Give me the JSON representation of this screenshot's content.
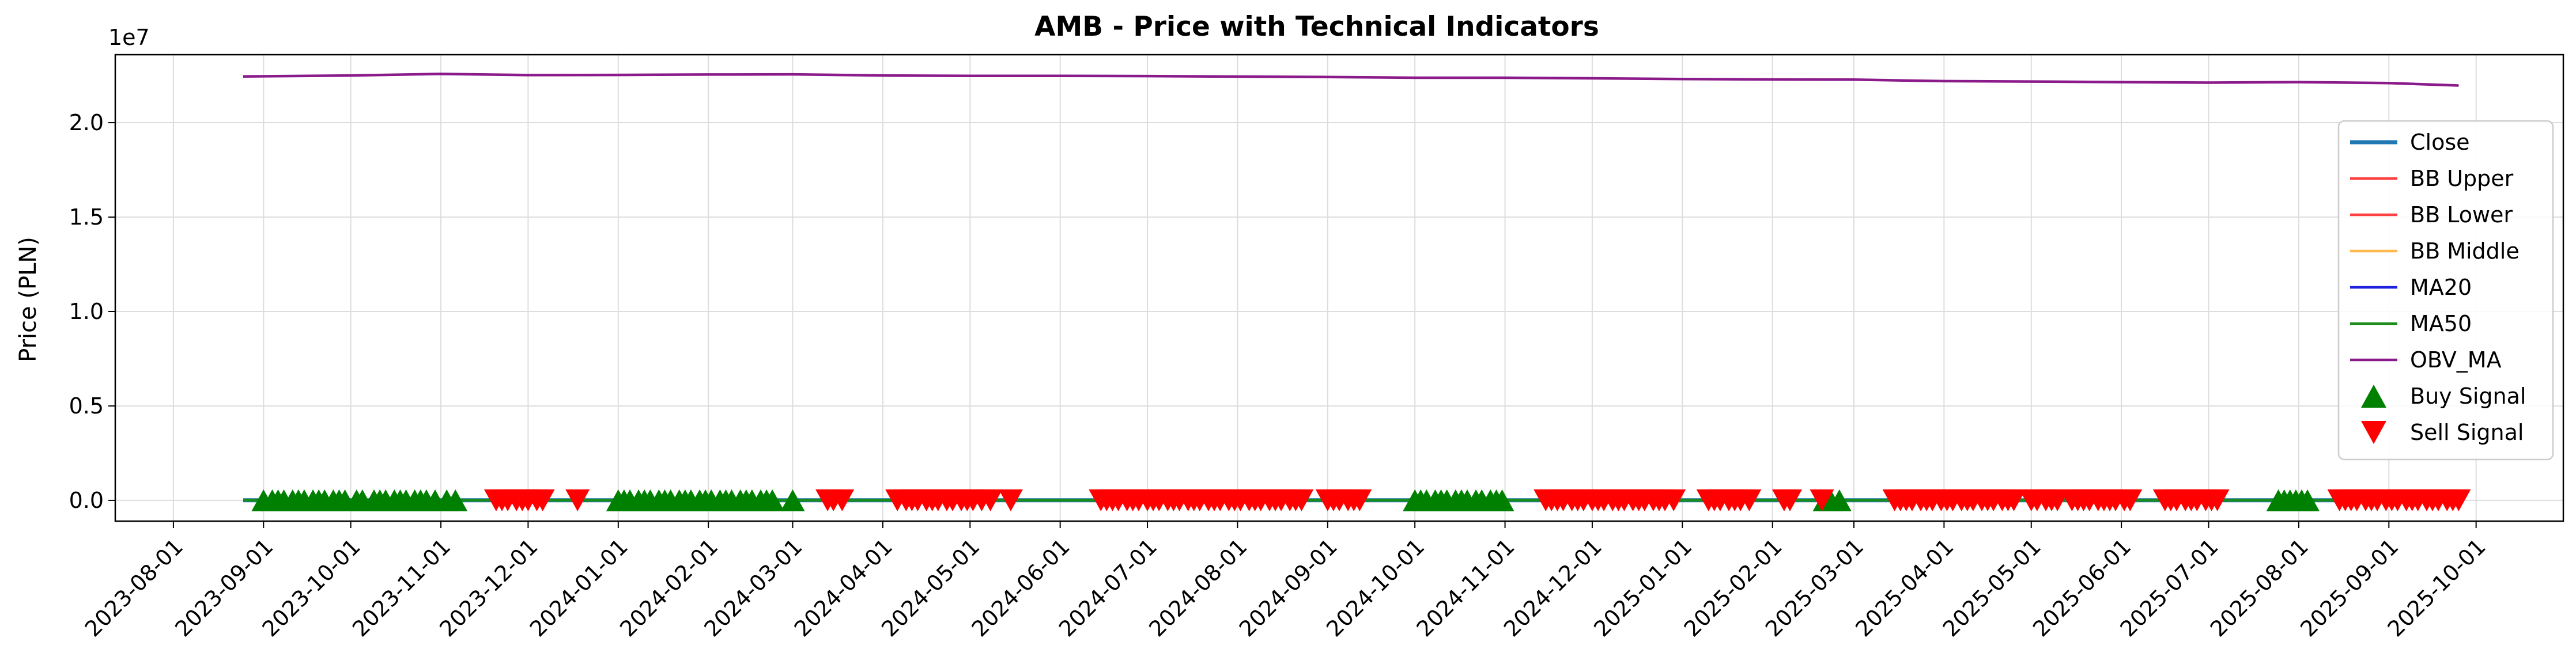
{
  "chart_data": {
    "type": "line",
    "title": "AMB - Price with Technical Indicators",
    "xlabel": "",
    "ylabel": "Price (PLN)",
    "y_offset_label": "1e7",
    "ylim": [
      -1.1,
      23.6
    ],
    "y_ticks": [
      {
        "v": 0.0,
        "label": "0.0"
      },
      {
        "v": 5.0,
        "label": "0.5"
      },
      {
        "v": 10.0,
        "label": "1.0"
      },
      {
        "v": 15.0,
        "label": "1.5"
      },
      {
        "v": 20.0,
        "label": "2.0"
      }
    ],
    "xlim": [
      "2023-07-12",
      "2025-10-31"
    ],
    "x_ticks": [
      "2023-08-01",
      "2023-09-01",
      "2023-10-01",
      "2023-11-01",
      "2023-12-01",
      "2024-01-01",
      "2024-02-01",
      "2024-03-01",
      "2024-04-01",
      "2024-05-01",
      "2024-06-01",
      "2024-07-01",
      "2024-08-01",
      "2024-09-01",
      "2024-10-01",
      "2024-11-01",
      "2024-12-01",
      "2025-01-01",
      "2025-02-01",
      "2025-03-01",
      "2025-04-01",
      "2025-05-01",
      "2025-06-01",
      "2025-07-01",
      "2025-08-01",
      "2025-09-01",
      "2025-10-01"
    ],
    "grid": true,
    "legend_position": "center-right",
    "series": [
      {
        "name": "Close",
        "color": "#1f77b4",
        "x": [
          "2023-08-25",
          "2025-09-25"
        ],
        "y": [
          0.003,
          0.003
        ]
      },
      {
        "name": "BB Upper",
        "color": "#ff4040",
        "x": [
          "2023-08-25",
          "2025-09-25"
        ],
        "y": [
          0.0035,
          0.0035
        ]
      },
      {
        "name": "BB Lower",
        "color": "#ff4040",
        "x": [
          "2023-08-25",
          "2025-09-25"
        ],
        "y": [
          0.0025,
          0.0025
        ]
      },
      {
        "name": "BB Middle",
        "color": "#ffb84d",
        "x": [
          "2023-08-25",
          "2025-09-25"
        ],
        "y": [
          0.003,
          0.003
        ]
      },
      {
        "name": "MA20",
        "color": "#2020e0",
        "x": [
          "2023-08-25",
          "2025-09-25"
        ],
        "y": [
          0.003,
          0.003
        ]
      },
      {
        "name": "MA50",
        "color": "#1a8c1a",
        "x": [
          "2023-08-25",
          "2025-09-25"
        ],
        "y": [
          0.003,
          0.003
        ]
      },
      {
        "name": "OBV_MA",
        "color": "#8b1a8b",
        "x": [
          "2023-08-25",
          "2023-10-01",
          "2023-11-01",
          "2023-12-01",
          "2024-01-01",
          "2024-02-01",
          "2024-03-01",
          "2024-04-01",
          "2024-05-01",
          "2024-06-01",
          "2024-07-01",
          "2024-08-01",
          "2024-09-01",
          "2024-10-01",
          "2024-11-01",
          "2024-12-01",
          "2025-01-01",
          "2025-02-01",
          "2025-03-01",
          "2025-04-01",
          "2025-05-01",
          "2025-06-01",
          "2025-07-01",
          "2025-08-01",
          "2025-09-01",
          "2025-09-25"
        ],
        "y": [
          22.45,
          22.5,
          22.58,
          22.52,
          22.53,
          22.55,
          22.56,
          22.5,
          22.48,
          22.48,
          22.47,
          22.44,
          22.42,
          22.38,
          22.38,
          22.35,
          22.31,
          22.29,
          22.28,
          22.2,
          22.18,
          22.15,
          22.12,
          22.15,
          22.1,
          21.97
        ]
      }
    ],
    "buy_signal": {
      "name": "Buy Signal",
      "color": "#008000",
      "y": 0.0,
      "x": [
        "2023-09-01",
        "2023-09-04",
        "2023-09-06",
        "2023-09-08",
        "2023-09-11",
        "2023-09-13",
        "2023-09-15",
        "2023-09-18",
        "2023-09-20",
        "2023-09-22",
        "2023-09-25",
        "2023-09-27",
        "2023-09-29",
        "2023-10-03",
        "2023-10-05",
        "2023-10-09",
        "2023-10-11",
        "2023-10-13",
        "2023-10-16",
        "2023-10-18",
        "2023-10-20",
        "2023-10-23",
        "2023-10-25",
        "2023-10-27",
        "2023-10-30",
        "2023-11-03",
        "2023-11-06",
        "2024-01-01",
        "2024-01-03",
        "2024-01-05",
        "2024-01-08",
        "2024-01-10",
        "2024-01-12",
        "2024-01-15",
        "2024-01-17",
        "2024-01-19",
        "2024-01-22",
        "2024-01-24",
        "2024-01-26",
        "2024-01-29",
        "2024-01-31",
        "2024-02-02",
        "2024-02-05",
        "2024-02-07",
        "2024-02-09",
        "2024-02-12",
        "2024-02-14",
        "2024-02-16",
        "2024-02-19",
        "2024-02-21",
        "2024-02-23",
        "2024-03-01",
        "2024-10-01",
        "2024-10-03",
        "2024-10-05",
        "2024-10-08",
        "2024-10-10",
        "2024-10-12",
        "2024-10-15",
        "2024-10-17",
        "2024-10-19",
        "2024-10-22",
        "2024-10-24",
        "2024-10-27",
        "2024-10-29",
        "2024-10-31",
        "2025-02-19",
        "2025-02-21",
        "2025-02-24",
        "2025-07-25",
        "2025-07-27",
        "2025-07-29",
        "2025-07-31",
        "2025-08-02",
        "2025-08-04"
      ]
    },
    "sell_signal": {
      "name": "Sell Signal",
      "color": "#ff0000",
      "y": 0.0,
      "x": [
        "2023-11-20",
        "2023-11-22",
        "2023-11-24",
        "2023-11-27",
        "2023-11-29",
        "2023-12-01",
        "2023-12-04",
        "2023-12-06",
        "2023-12-18",
        "2024-03-13",
        "2024-03-15",
        "2024-03-18",
        "2024-04-06",
        "2024-04-09",
        "2024-04-11",
        "2024-04-13",
        "2024-04-16",
        "2024-04-18",
        "2024-04-20",
        "2024-04-23",
        "2024-04-25",
        "2024-04-28",
        "2024-04-30",
        "2024-05-02",
        "2024-05-05",
        "2024-05-08",
        "2024-05-15",
        "2024-06-15",
        "2024-06-17",
        "2024-06-19",
        "2024-06-21",
        "2024-06-24",
        "2024-06-26",
        "2024-06-28",
        "2024-07-01",
        "2024-07-03",
        "2024-07-05",
        "2024-07-08",
        "2024-07-10",
        "2024-07-12",
        "2024-07-15",
        "2024-07-17",
        "2024-07-19",
        "2024-07-22",
        "2024-07-24",
        "2024-07-26",
        "2024-07-29",
        "2024-07-31",
        "2024-08-02",
        "2024-08-05",
        "2024-08-07",
        "2024-08-09",
        "2024-08-12",
        "2024-08-14",
        "2024-08-16",
        "2024-08-19",
        "2024-08-21",
        "2024-08-23",
        "2024-09-01",
        "2024-09-03",
        "2024-09-05",
        "2024-09-08",
        "2024-09-10",
        "2024-09-12",
        "2024-11-15",
        "2024-11-17",
        "2024-11-19",
        "2024-11-21",
        "2024-11-24",
        "2024-11-26",
        "2024-11-28",
        "2024-12-01",
        "2024-12-03",
        "2024-12-05",
        "2024-12-08",
        "2024-12-10",
        "2024-12-12",
        "2024-12-15",
        "2024-12-17",
        "2024-12-19",
        "2024-12-22",
        "2024-12-24",
        "2024-12-26",
        "2024-12-29",
        "2025-01-10",
        "2025-01-12",
        "2025-01-14",
        "2025-01-17",
        "2025-01-19",
        "2025-01-21",
        "2025-01-24",
        "2025-02-05",
        "2025-02-07",
        "2025-02-18",
        "2025-03-15",
        "2025-03-17",
        "2025-03-19",
        "2025-03-21",
        "2025-03-24",
        "2025-03-26",
        "2025-03-28",
        "2025-03-31",
        "2025-04-02",
        "2025-04-04",
        "2025-04-07",
        "2025-04-09",
        "2025-04-11",
        "2025-04-14",
        "2025-04-16",
        "2025-04-18",
        "2025-04-21",
        "2025-04-23",
        "2025-04-25",
        "2025-05-01",
        "2025-05-03",
        "2025-05-06",
        "2025-05-08",
        "2025-05-10",
        "2025-05-15",
        "2025-05-17",
        "2025-05-19",
        "2025-05-21",
        "2025-05-24",
        "2025-05-26",
        "2025-05-28",
        "2025-05-30",
        "2025-06-02",
        "2025-06-04",
        "2025-06-16",
        "2025-06-18",
        "2025-06-20",
        "2025-06-23",
        "2025-06-25",
        "2025-06-27",
        "2025-06-30",
        "2025-07-02",
        "2025-07-04",
        "2025-08-15",
        "2025-08-17",
        "2025-08-19",
        "2025-08-21",
        "2025-08-24",
        "2025-08-26",
        "2025-08-28",
        "2025-08-31",
        "2025-09-02",
        "2025-09-04",
        "2025-09-07",
        "2025-09-09",
        "2025-09-11",
        "2025-09-14",
        "2025-09-16",
        "2025-09-18",
        "2025-09-21",
        "2025-09-23",
        "2025-09-25"
      ]
    }
  }
}
